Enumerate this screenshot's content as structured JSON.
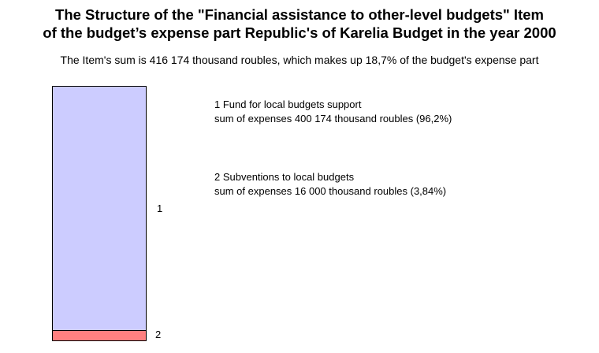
{
  "title": {
    "line1": "The Structure of the \"Financial assistance to other-level budgets\" Item",
    "line2": "of the budget’s expense part Republic's of Karelia Budget in the year 2000"
  },
  "subtitle": "The Item's sum is 416 174 thousand roubles, which makes up 18,7% of the budget's expense part",
  "chart_data": {
    "type": "bar",
    "stacked": true,
    "orientation": "vertical",
    "title": "The Structure of the \"Financial assistance to other-level budgets\" Item of the budget’s expense part Republic's of Karelia Budget in the year 2000",
    "subtitle": "The Item's sum is 416 174 thousand roubles, which makes up 18,7% of the budget's expense part",
    "categories": [
      "Financial assistance to other-level budgets"
    ],
    "total_value": 416174,
    "units": "thousand roubles",
    "total_share_of_expense_part": "18,7%",
    "segments": [
      {
        "index": "1",
        "name": "Fund for local budgets support",
        "value": 400174,
        "percent": 96.2,
        "percent_label": "96,2%",
        "color": "#CCCCFF"
      },
      {
        "index": "2",
        "name": "Subventions to local budgets",
        "value": 16000,
        "percent": 3.84,
        "percent_label": "3,84%",
        "color": "#FF8080"
      }
    ],
    "border_color": "#000000",
    "background_color": "#FFFFFF",
    "grid": false,
    "axes_visible": false,
    "legend_position": "right"
  },
  "legend": {
    "item1": {
      "line1": "1  Fund for local budgets support",
      "line2": "sum of expenses 400 174 thousand roubles (96,2%)"
    },
    "item2": {
      "line1": "2  Subventions to local budgets",
      "line2": "sum of expenses 16 000 thousand roubles (3,84%)"
    }
  }
}
